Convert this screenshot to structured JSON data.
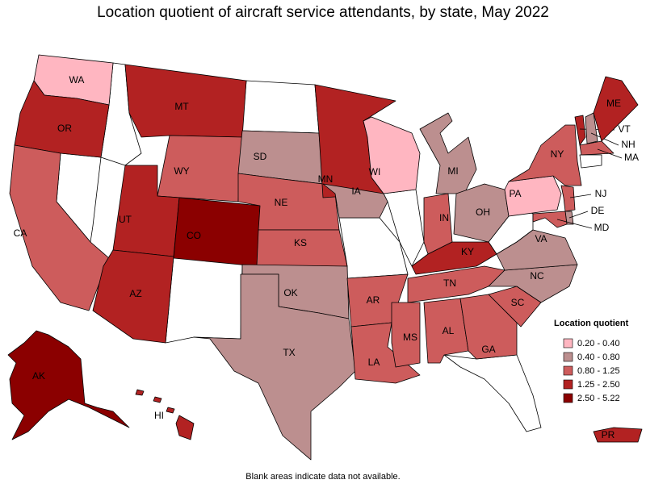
{
  "title": "Location quotient of aircraft service attendants, by state, May 2022",
  "legend": {
    "title": "Location quotient",
    "items": [
      {
        "label": "0.20 - 0.40",
        "color": "#ffb6c1"
      },
      {
        "label": "0.40 - 0.80",
        "color": "#bc8f8f"
      },
      {
        "label": "0.80 - 1.25",
        "color": "#cd5c5c"
      },
      {
        "label": "1.25 - 2.50",
        "color": "#b22222"
      },
      {
        "label": "2.50 - 5.22",
        "color": "#8b0000"
      }
    ]
  },
  "states": [
    {
      "label": "WA",
      "bin": 0
    },
    {
      "label": "OR",
      "bin": 3
    },
    {
      "label": "CA",
      "bin": 2
    },
    {
      "label": "MT",
      "bin": 3
    },
    {
      "label": "WY",
      "bin": 2
    },
    {
      "label": "UT",
      "bin": 3
    },
    {
      "label": "CO",
      "bin": 4
    },
    {
      "label": "AZ",
      "bin": 3
    },
    {
      "label": "SD",
      "bin": 1
    },
    {
      "label": "NE",
      "bin": 2
    },
    {
      "label": "KS",
      "bin": 2
    },
    {
      "label": "OK",
      "bin": 1
    },
    {
      "label": "TX",
      "bin": 1
    },
    {
      "label": "MN",
      "bin": 3
    },
    {
      "label": "IA",
      "bin": 1
    },
    {
      "label": "AR",
      "bin": 2
    },
    {
      "label": "LA",
      "bin": 2
    },
    {
      "label": "WI",
      "bin": 0
    },
    {
      "label": "MI",
      "bin": 1
    },
    {
      "label": "IN",
      "bin": 2
    },
    {
      "label": "OH",
      "bin": 1
    },
    {
      "label": "KY",
      "bin": 3
    },
    {
      "label": "TN",
      "bin": 2
    },
    {
      "label": "MS",
      "bin": 2
    },
    {
      "label": "AL",
      "bin": 2
    },
    {
      "label": "GA",
      "bin": 2
    },
    {
      "label": "SC",
      "bin": 2
    },
    {
      "label": "NC",
      "bin": 1
    },
    {
      "label": "VA",
      "bin": 1
    },
    {
      "label": "PA",
      "bin": 0
    },
    {
      "label": "NY",
      "bin": 2
    },
    {
      "label": "NJ",
      "bin": 2
    },
    {
      "label": "DE",
      "bin": 1
    },
    {
      "label": "MD",
      "bin": 2
    },
    {
      "label": "VT",
      "bin": 3
    },
    {
      "label": "NH",
      "bin": 1
    },
    {
      "label": "MA",
      "bin": 2
    },
    {
      "label": "ME",
      "bin": 3
    },
    {
      "label": "AK",
      "bin": 4
    },
    {
      "label": "HI",
      "bin": 3
    },
    {
      "label": "PR",
      "bin": 3
    }
  ],
  "footnote": "Blank areas indicate data not available."
}
